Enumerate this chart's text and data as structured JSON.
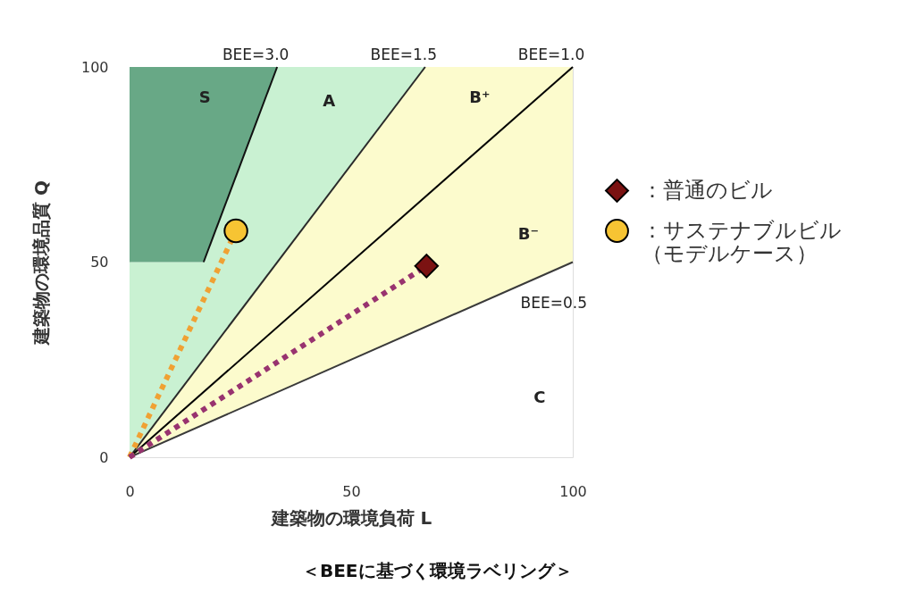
{
  "chart_data": {
    "type": "scatter",
    "title": "＜BEEに基づく環境ラベリング＞",
    "xlabel": "建築物の環境負荷 L",
    "ylabel": "建築物の環境品質 Q",
    "xlim": [
      0,
      100
    ],
    "ylim": [
      0,
      100
    ],
    "xticks": [
      0,
      50,
      100
    ],
    "yticks": [
      0,
      50,
      100
    ],
    "legend": "right",
    "series": [
      {
        "type": "area",
        "color": "#c9f1d2",
        "x": [
          0,
          16.7,
          33.3,
          66.7
        ],
        "values": [
          null,
          null,
          null,
          null
        ],
        "lower": [
          0,
          25,
          50,
          100
        ],
        "upper": [
          50,
          50,
          100,
          100
        ]
      },
      {
        "type": "area",
        "color": "#fcfbcd",
        "x": [
          0,
          66.7,
          100
        ],
        "values": [
          null,
          null,
          null
        ],
        "lower": [
          0,
          33.3,
          50
        ],
        "upper": [
          0,
          100,
          100
        ]
      },
      {
        "type": "area",
        "color": "#68a886",
        "x": [
          0,
          16.7,
          33.3
        ],
        "values": [
          null,
          null,
          null
        ],
        "lower": [
          50,
          50,
          100
        ],
        "upper": [
          100,
          100,
          100
        ]
      },
      {
        "type": "line",
        "name": "BEE=3.0",
        "color": "#111111",
        "x": [
          16.7,
          33.3
        ],
        "values": [
          50,
          100
        ],
        "line_style": "solid"
      },
      {
        "type": "line",
        "name": "BEE=1.5",
        "color": "#2a2a2a",
        "x": [
          0,
          66.7
        ],
        "values": [
          0,
          100
        ],
        "line_style": "solid"
      },
      {
        "type": "line",
        "name": "BEE=1.0",
        "color": "#000000",
        "x": [
          0,
          100
        ],
        "values": [
          0,
          100
        ],
        "line_style": "solid"
      },
      {
        "type": "line",
        "name": "BEE=0.5",
        "color": "#3a3a3a",
        "x": [
          0,
          100
        ],
        "values": [
          0,
          50
        ],
        "line_style": "solid"
      },
      {
        "type": "line",
        "color": "#f0a133",
        "x": [
          0,
          24
        ],
        "values": [
          0,
          58
        ],
        "line_style": "dotted"
      },
      {
        "type": "line",
        "color": "#98336f",
        "x": [
          0,
          67
        ],
        "values": [
          0,
          49
        ],
        "line_style": "dotted"
      },
      {
        "name": "：普通のビル",
        "color": "#7b1212",
        "x": [
          67
        ],
        "values": [
          49
        ],
        "marker": "diamond"
      },
      {
        "name": "：サステナブルビル（モデルケース）",
        "color": "#f7c433",
        "x": [
          24
        ],
        "values": [
          58
        ],
        "marker": "circle"
      }
    ],
    "annotations": [
      "S",
      "A",
      "B⁺",
      "B⁻",
      "C"
    ]
  }
}
